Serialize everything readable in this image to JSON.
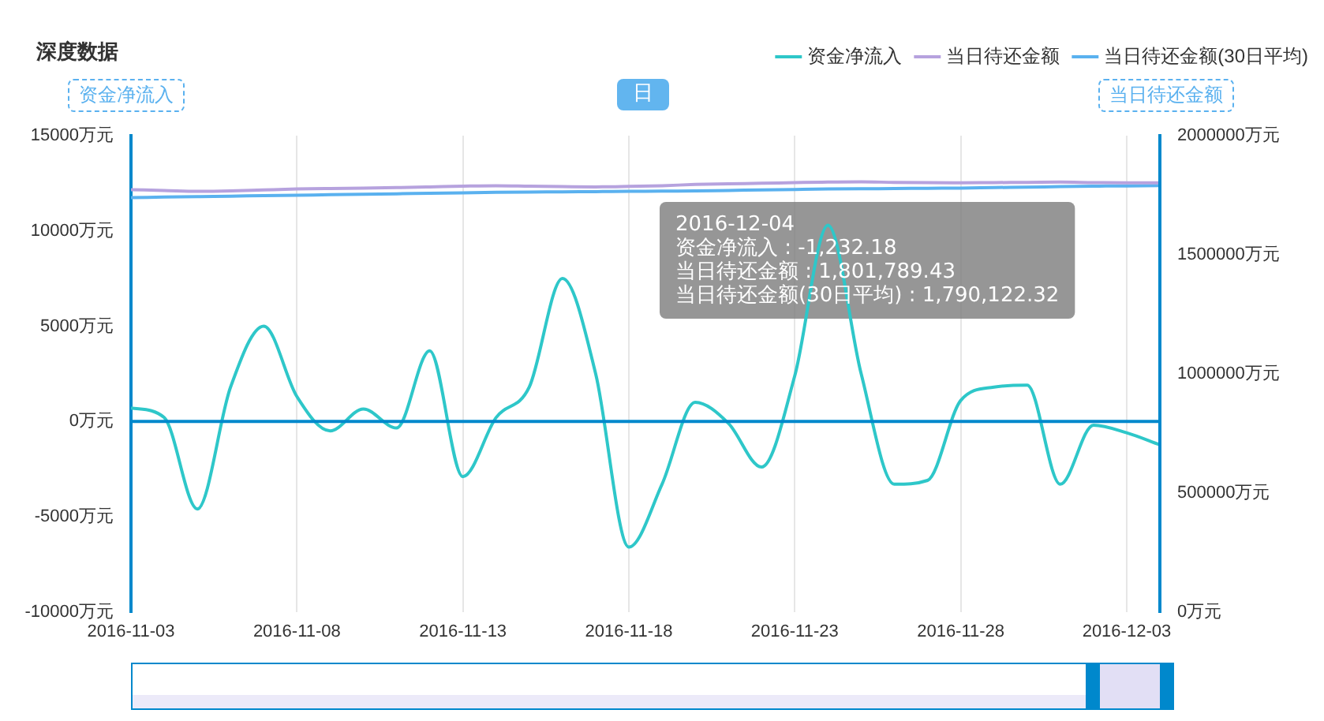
{
  "chart_data": {
    "type": "line",
    "title": "深度数据",
    "ylabel": "资金净流入",
    "y2label": "当日待还金额",
    "categories": [
      "2016-11-03",
      null,
      null,
      null,
      null,
      "2016-11-08",
      null,
      null,
      null,
      null,
      "2016-11-13",
      null,
      null,
      null,
      null,
      "2016-11-18",
      null,
      null,
      null,
      null,
      "2016-11-23",
      null,
      null,
      null,
      null,
      "2016-11-28",
      null,
      null,
      null,
      null,
      "2016-12-03",
      null
    ],
    "series": [
      {
        "name": "资金净流入",
        "color": "#2ec7c9",
        "values": [
          700,
          200,
          -4600,
          1800,
          5000,
          1300,
          -500,
          650,
          -350,
          3700,
          -2900,
          200,
          1800,
          7500,
          2500,
          -6600,
          -3300,
          1000,
          -100,
          -2400,
          2400,
          10300,
          2500,
          -3300,
          -3100,
          1100,
          1800,
          1900,
          -3300,
          -200,
          -600,
          -1232.18
        ]
      },
      {
        "name": "当日待还金额",
        "color": "#b6a2de",
        "axis": "y2",
        "values": [
          1773000,
          1770000,
          1766000,
          1768000,
          1772000,
          1776000,
          1778000,
          1780000,
          1782000,
          1785000,
          1788000,
          1790000,
          1788000,
          1786000,
          1785000,
          1787000,
          1790000,
          1795000,
          1798000,
          1800000,
          1803000,
          1805000,
          1806000,
          1804000,
          1803000,
          1802000,
          1803000,
          1804000,
          1805000,
          1803000,
          1802000,
          1801789.43
        ]
      },
      {
        "name": "当日待还金额(30日平均)",
        "color": "#5ab1ef",
        "axis": "y2",
        "values": [
          1740000,
          1742000,
          1744000,
          1746000,
          1748000,
          1750000,
          1752000,
          1754000,
          1756000,
          1758000,
          1760000,
          1762000,
          1763000,
          1764000,
          1765000,
          1766000,
          1767000,
          1768000,
          1770000,
          1772000,
          1774000,
          1776000,
          1777000,
          1778000,
          1779000,
          1780000,
          1782000,
          1784000,
          1786000,
          1788000,
          1789000,
          1790122.32
        ]
      }
    ],
    "ylim": [
      -10000,
      15000
    ],
    "yticks": [
      {
        "value": -10000,
        "label": "-10000万元"
      },
      {
        "value": -5000,
        "label": "-5000万元"
      },
      {
        "value": 0,
        "label": "0万元"
      },
      {
        "value": 5000,
        "label": "5000万元"
      },
      {
        "value": 10000,
        "label": "10000万元"
      },
      {
        "value": 15000,
        "label": "15000万元"
      }
    ],
    "y2lim": [
      0,
      2000000
    ],
    "y2ticks": [
      {
        "value": 0,
        "label": "0万元"
      },
      {
        "value": 500000,
        "label": "500000万元"
      },
      {
        "value": 1000000,
        "label": "1000000万元"
      },
      {
        "value": 1500000,
        "label": "1500000万元"
      },
      {
        "value": 2000000,
        "label": "2000000万元"
      }
    ],
    "ref_lines": [
      {
        "axis": "y",
        "value": 0,
        "label": null,
        "color": "#0088cc"
      }
    ],
    "annotations": [
      "日",
      "2016-12-04\n资金净流入 : -1,232.18\n当日待还金额 : 1,801,789.43\n当日待还金额(30日平均) : 1,790,122.32"
    ],
    "grid": "x",
    "legend": "top right",
    "marker": "none",
    "line_style": "solid"
  }
}
